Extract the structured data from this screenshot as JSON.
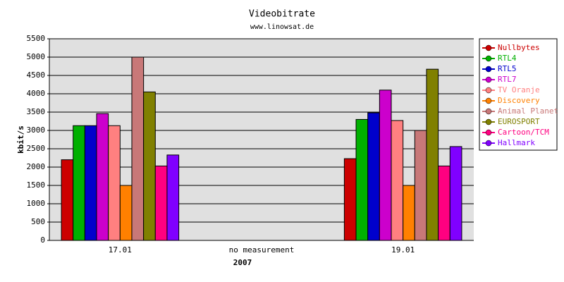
{
  "chart_data": {
    "type": "bar",
    "title": "Videobitrate",
    "subtitle": "www.linowsat.de",
    "x_label": "2007",
    "y_label": "kbit/s",
    "categories": [
      "17.01",
      "no measurement",
      "19.01"
    ],
    "series": [
      {
        "name": "Nullbytes",
        "color": "#cc0000",
        "values": [
          2200,
          null,
          2230
        ]
      },
      {
        "name": "RTL4",
        "color": "#00b000",
        "values": [
          3130,
          null,
          3300
        ]
      },
      {
        "name": "RTL5",
        "color": "#0000cc",
        "values": [
          3130,
          null,
          3480
        ]
      },
      {
        "name": "RTL7",
        "color": "#cc00cc",
        "values": [
          3460,
          null,
          4100
        ]
      },
      {
        "name": "TV Oranje",
        "color": "#ff8080",
        "values": [
          3130,
          null,
          3270
        ]
      },
      {
        "name": "Discovery",
        "color": "#ff8000",
        "values": [
          1500,
          null,
          1500
        ]
      },
      {
        "name": "Animal Planet",
        "color": "#c87878",
        "values": [
          5000,
          null,
          3000
        ]
      },
      {
        "name": "EUROSPORT",
        "color": "#808000",
        "values": [
          4050,
          null,
          4670
        ]
      },
      {
        "name": "Cartoon/TCM",
        "color": "#ff0080",
        "values": [
          2030,
          null,
          2030
        ]
      },
      {
        "name": "Hallmark",
        "color": "#8000ff",
        "values": [
          2330,
          null,
          2560
        ]
      }
    ],
    "ylim": [
      0,
      5500
    ],
    "yticks": [
      0,
      500,
      1000,
      1500,
      2000,
      2500,
      3000,
      3500,
      4000,
      4500,
      5000,
      5500
    ],
    "grid": true,
    "legend": "right"
  }
}
